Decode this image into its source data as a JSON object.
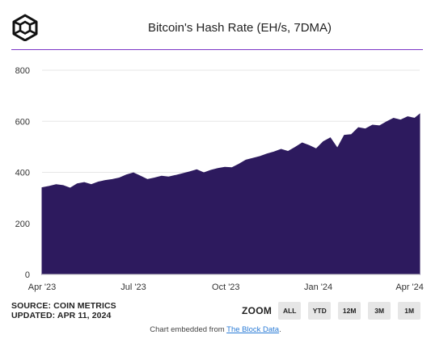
{
  "header": {
    "title": "Bitcoin's Hash Rate (EH/s, 7DMA)",
    "logo_icon": "the-block-cube-logo-icon"
  },
  "colors": {
    "accent": "#7b35c6",
    "area_fill": "#2d1a5e",
    "grid": "#e6e6e6"
  },
  "chart_data": {
    "type": "area",
    "title": "Bitcoin's Hash Rate (EH/s, 7DMA)",
    "xlabel": "",
    "ylabel": "",
    "ylim": [
      0,
      800
    ],
    "yticks": [
      0,
      200,
      400,
      600,
      800
    ],
    "ytick_labels": [
      "0",
      "200",
      "400",
      "600",
      "800"
    ],
    "xlim": [
      "2023-04-01",
      "2024-04-11"
    ],
    "xticks": [
      "2023-04-01",
      "2023-07-01",
      "2023-10-01",
      "2024-01-01",
      "2024-04-01"
    ],
    "xtick_labels": [
      "Apr '23",
      "Jul '23",
      "Oct '23",
      "Jan '24",
      "Apr '24"
    ],
    "grid": "horizontal",
    "series": [
      {
        "name": "",
        "x": [
          "2023-04-01",
          "2023-04-08",
          "2023-04-15",
          "2023-04-22",
          "2023-04-29",
          "2023-05-06",
          "2023-05-13",
          "2023-05-20",
          "2023-05-27",
          "2023-06-03",
          "2023-06-10",
          "2023-06-17",
          "2023-06-24",
          "2023-07-01",
          "2023-07-08",
          "2023-07-15",
          "2023-07-22",
          "2023-07-29",
          "2023-08-05",
          "2023-08-12",
          "2023-08-19",
          "2023-08-26",
          "2023-09-02",
          "2023-09-09",
          "2023-09-16",
          "2023-09-23",
          "2023-09-30",
          "2023-10-07",
          "2023-10-14",
          "2023-10-21",
          "2023-10-28",
          "2023-11-04",
          "2023-11-11",
          "2023-11-18",
          "2023-11-25",
          "2023-12-02",
          "2023-12-09",
          "2023-12-16",
          "2023-12-23",
          "2023-12-30",
          "2024-01-06",
          "2024-01-13",
          "2024-01-20",
          "2024-01-27",
          "2024-02-03",
          "2024-02-10",
          "2024-02-17",
          "2024-02-24",
          "2024-03-02",
          "2024-03-09",
          "2024-03-16",
          "2024-03-23",
          "2024-03-30",
          "2024-04-06",
          "2024-04-11"
        ],
        "values": [
          340,
          345,
          352,
          348,
          338,
          355,
          360,
          352,
          362,
          368,
          372,
          378,
          390,
          398,
          385,
          372,
          378,
          385,
          382,
          388,
          395,
          402,
          410,
          398,
          408,
          415,
          420,
          418,
          432,
          448,
          455,
          462,
          472,
          480,
          490,
          482,
          498,
          515,
          505,
          492,
          520,
          535,
          495,
          545,
          548,
          575,
          570,
          585,
          582,
          598,
          612,
          605,
          618,
          612,
          628
        ]
      }
    ]
  },
  "source": {
    "line1": "SOURCE: COIN METRICS",
    "line2": "UPDATED: APR 11, 2024"
  },
  "zoom": {
    "label": "ZOOM",
    "buttons": [
      "ALL",
      "YTD",
      "12M",
      "3M",
      "1M"
    ]
  },
  "footer": {
    "prefix": "Chart embedded from ",
    "link_text": "The Block Data",
    "suffix": "."
  }
}
